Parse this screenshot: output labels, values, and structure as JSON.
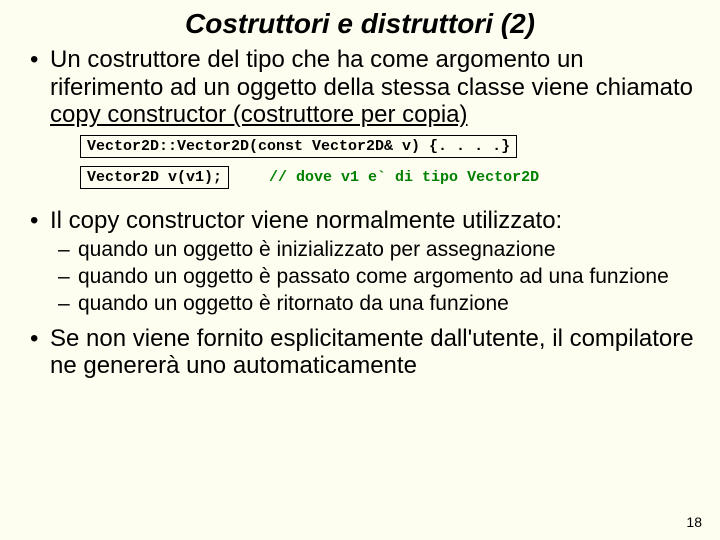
{
  "title": {
    "text": "Costruttori e distruttori (2)",
    "fontsize": 28,
    "color": "#000000"
  },
  "body_fontsize": 24,
  "sub_fontsize": 21,
  "code_fontsize": 15,
  "colors": {
    "background": "#fdfdf0",
    "text": "#000000",
    "code_text": "#000000",
    "comment": "#008000",
    "box_border": "#000000"
  },
  "bullets": [
    {
      "pre": "Un costruttore del tipo che ha come argomento un riferimento ad un oggetto della stessa classe viene chiamato ",
      "underline": "copy constructor (costruttore per copia)"
    }
  ],
  "code1": "Vector2D::Vector2D(const Vector2D& v) {. . . .}",
  "code2": "Vector2D v(v1);",
  "code2_comment": "// dove v1 e` di tipo Vector2D",
  "bullet2": "Il copy constructor viene normalmente utilizzato:",
  "sub": [
    "quando un oggetto è inizializzato per assegnazione",
    "quando un oggetto è  passato come argomento ad una funzione",
    "quando un oggetto è ritornato da una funzione"
  ],
  "bullet3": "Se non viene fornito esplicitamente dall'utente, il compilatore ne genererà uno automaticamente",
  "pagenum": {
    "text": "18",
    "fontsize": 14
  }
}
